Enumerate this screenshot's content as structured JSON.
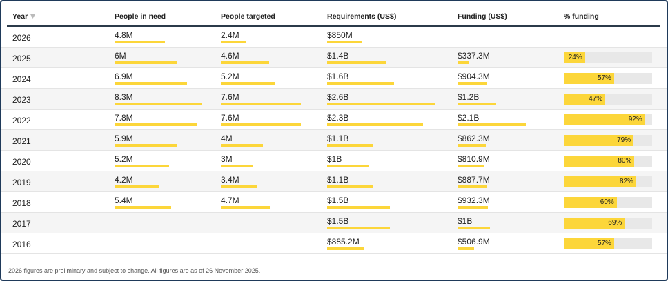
{
  "header": {
    "columns": [
      "Year",
      "People in need",
      "People targeted",
      "Requirements (US$)",
      "Funding (US$)",
      "% funding"
    ]
  },
  "table": {
    "rows": [
      [
        "2026",
        {
          "value": 4800000,
          "label": "4.8M"
        },
        {
          "value": 2400000,
          "label": "2.4M"
        },
        {
          "value": 850000000,
          "label": "$850M"
        },
        null,
        null
      ],
      [
        "2025",
        {
          "value": 6000000,
          "label": "6M"
        },
        {
          "value": 4600000,
          "label": "4.6M"
        },
        {
          "value": 1400000000,
          "label": "$1.4B"
        },
        {
          "value": 337300000,
          "label": "$337.3M"
        },
        {
          "value": 24,
          "label": "24%"
        }
      ],
      [
        "2024",
        {
          "value": 6900000,
          "label": "6.9M"
        },
        {
          "value": 5200000,
          "label": "5.2M"
        },
        {
          "value": 1600000000,
          "label": "$1.6B"
        },
        {
          "value": 904300000,
          "label": "$904.3M"
        },
        {
          "value": 57,
          "label": "57%"
        }
      ],
      [
        "2023",
        {
          "value": 8300000,
          "label": "8.3M"
        },
        {
          "value": 7600000,
          "label": "7.6M"
        },
        {
          "value": 2600000000,
          "label": "$2.6B"
        },
        {
          "value": 1200000000,
          "label": "$1.2B"
        },
        {
          "value": 47,
          "label": "47%"
        }
      ],
      [
        "2022",
        {
          "value": 7800000,
          "label": "7.8M"
        },
        {
          "value": 7600000,
          "label": "7.6M"
        },
        {
          "value": 2300000000,
          "label": "$2.3B"
        },
        {
          "value": 2100000000,
          "label": "$2.1B"
        },
        {
          "value": 92,
          "label": "92%"
        }
      ],
      [
        "2021",
        {
          "value": 5900000,
          "label": "5.9M"
        },
        {
          "value": 4000000,
          "label": "4M"
        },
        {
          "value": 1100000000,
          "label": "$1.1B"
        },
        {
          "value": 862300000,
          "label": "$862.3M"
        },
        {
          "value": 79,
          "label": "79%"
        }
      ],
      [
        "2020",
        {
          "value": 5200000,
          "label": "5.2M"
        },
        {
          "value": 3000000,
          "label": "3M"
        },
        {
          "value": 1000000000,
          "label": "$1B"
        },
        {
          "value": 810900000,
          "label": "$810.9M"
        },
        {
          "value": 80,
          "label": "80%"
        }
      ],
      [
        "2019",
        {
          "value": 4200000,
          "label": "4.2M"
        },
        {
          "value": 3400000,
          "label": "3.4M"
        },
        {
          "value": 1100000000,
          "label": "$1.1B"
        },
        {
          "value": 887700000,
          "label": "$887.7M"
        },
        {
          "value": 82,
          "label": "82%"
        }
      ],
      [
        "2018",
        {
          "value": 5400000,
          "label": "5.4M"
        },
        {
          "value": 4700000,
          "label": "4.7M"
        },
        {
          "value": 1500000000,
          "label": "$1.5B"
        },
        {
          "value": 932300000,
          "label": "$932.3M"
        },
        {
          "value": 60,
          "label": "60%"
        }
      ],
      [
        "2017",
        null,
        null,
        {
          "value": 1500000000,
          "label": "$1.5B"
        },
        {
          "value": 1000000000,
          "label": "$1B"
        },
        {
          "value": 69,
          "label": "69%"
        }
      ],
      [
        "2016",
        null,
        null,
        {
          "value": 885200000,
          "label": "$885.2M"
        },
        {
          "value": 506900000,
          "label": "$506.9M"
        },
        {
          "value": 57,
          "label": "57%"
        }
      ]
    ]
  },
  "footnote": "2026 figures are preliminary and subject to change. All figures are as of 26 November 2025."
}
